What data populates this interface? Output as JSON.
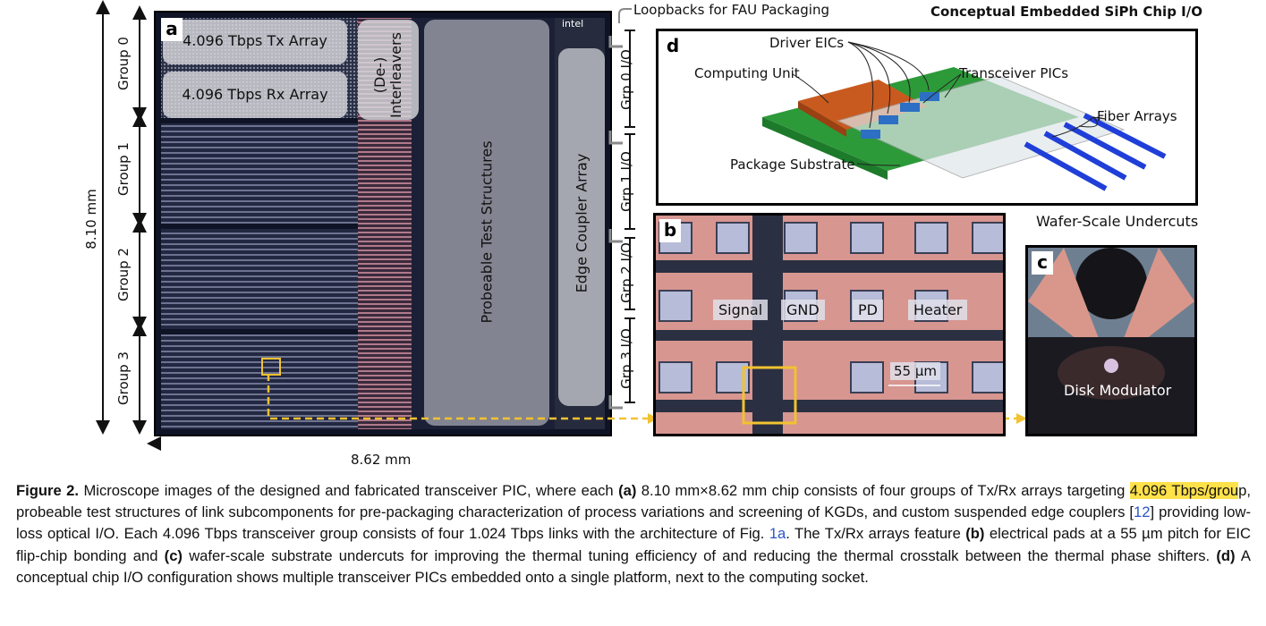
{
  "dims": {
    "height": "8.10 mm",
    "width": "8.62 mm"
  },
  "groups": [
    "Group 0",
    "Group 1",
    "Group 2",
    "Group 3"
  ],
  "io_labels": [
    "Grp 0 I/O",
    "Grp 1 I/O",
    "Grp 2 I/O",
    "Grp 3 I/O"
  ],
  "panel_a": {
    "letter": "a",
    "tx_array": "4.096 Tbps Tx Array",
    "rx_array": "4.096 Tbps Rx Array",
    "interleavers": [
      "(De-)",
      "Interleavers"
    ],
    "test_structures": "Probeable Test Structures",
    "edge_coupler": "Edge Coupler Array",
    "logo": "intel"
  },
  "loopbacks": "Loopbacks for FAU Packaging",
  "panel_d": {
    "letter": "d",
    "title": "Conceptual Embedded SiPh Chip I/O",
    "driver_eics": "Driver EICs",
    "computing_unit": "Computing Unit",
    "transceiver_pics": "Transceiver PICs",
    "fiber_arrays": "Fiber Arrays",
    "package_substrate": "Package Substrate"
  },
  "panel_b": {
    "letter": "b",
    "signal": "Signal",
    "gnd": "GND",
    "pd": "PD",
    "heater": "Heater",
    "pitch": "55 µm"
  },
  "panel_c": {
    "letter": "c",
    "title": "Wafer-Scale Undercuts",
    "disk": "Disk Modulator"
  },
  "caption": {
    "fig": "Figure 2.",
    "t1": " Microscope images of the designed and fabricated transceiver PIC, where each ",
    "a": "(a)",
    "t2": " 8.10 mm×8.62 mm chip consists of four groups of Tx/Rx arrays targeting ",
    "hl": "4.096 Tbps/grou",
    "t3": "p, probeable test structures of link subcomponents for pre-packaging characterization of process variations and screening of KGDs, and custom suspended edge couplers [",
    "ref1": "12",
    "t4": "] providing low-loss optical I/O. Each 4.096 Tbps transceiver group consists of four 1.024 Tbps links with the architecture of Fig. ",
    "ref2": "1a",
    "t5": ". The Tx/Rx arrays feature ",
    "b": "(b)",
    "t6": " electrical pads at a 55 µm pitch for EIC flip-chip bonding and ",
    "c": "(c)",
    "t7": " wafer-scale substrate undercuts for improving the thermal tuning efficiency of and reducing the thermal crosstalk between the thermal phase shifters. ",
    "d": "(d)",
    "t8": " A conceptual chip I/O configuration shows multiple transceiver PICs embedded onto a single platform, next to the computing socket."
  }
}
